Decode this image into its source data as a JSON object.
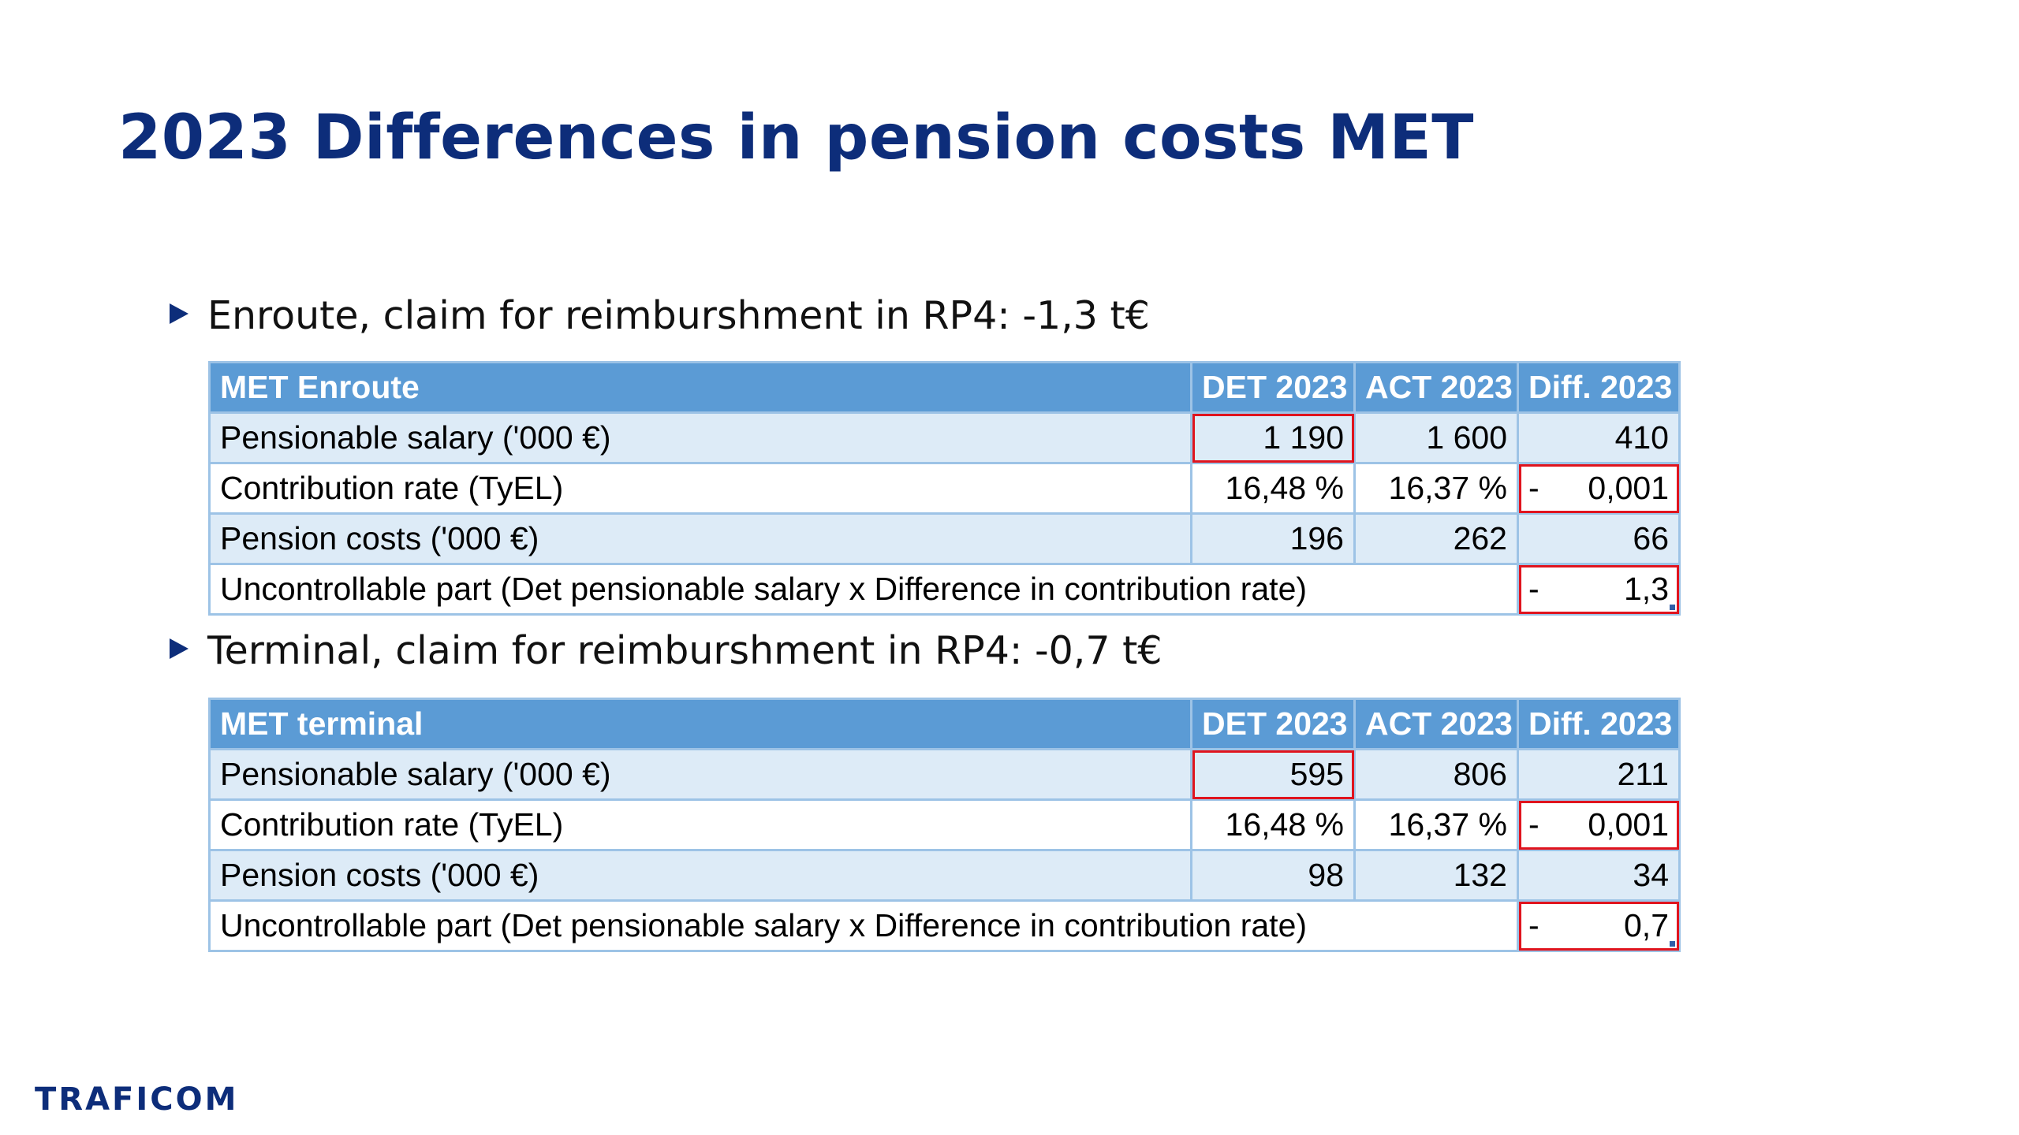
{
  "slide": {
    "title": "2023 Differences in pension costs MET",
    "bullet1": "Enroute, claim for reimburshment in RP4: -1,3 t€",
    "bullet2": "Terminal, claim for reimburshment in RP4: -0,7 t€",
    "logo": "TRAFICOM"
  },
  "colors": {
    "title": "#0d2d7a",
    "header_bg": "#5b9bd5",
    "row_shade": "#ddebf7",
    "highlight": "#e0141e"
  },
  "icons": {
    "bullet": "triangle-right-icon"
  },
  "enroute": {
    "header": [
      "MET Enroute",
      "DET 2023",
      "ACT 2023",
      "Diff. 2023"
    ],
    "salary": {
      "label": "Pensionable salary ('000 €)",
      "det": "1 190",
      "act": "1 600",
      "diff": "410"
    },
    "rate": {
      "label": "Contribution rate (TyEL)",
      "det": "16,48 %",
      "act": "16,37 %",
      "sign": "-",
      "diff": "0,001"
    },
    "costs": {
      "label": "Pension costs ('000 €)",
      "det": "196",
      "act": "262",
      "diff": "66"
    },
    "uncontrollable": {
      "label": "Uncontrollable part (Det pensionable salary x Difference in contribution rate)",
      "sign": "-",
      "diff": "1,3"
    }
  },
  "terminal": {
    "header": [
      "MET terminal",
      "DET 2023",
      "ACT 2023",
      "Diff. 2023"
    ],
    "salary": {
      "label": "Pensionable salary ('000 €)",
      "det": "595",
      "act": "806",
      "diff": "211"
    },
    "rate": {
      "label": "Contribution rate (TyEL)",
      "det": "16,48 %",
      "act": "16,37 %",
      "sign": "-",
      "diff": "0,001"
    },
    "costs": {
      "label": "Pension costs ('000 €)",
      "det": "98",
      "act": "132",
      "diff": "34"
    },
    "uncontrollable": {
      "label": "Uncontrollable part (Det pensionable salary x Difference in contribution rate)",
      "sign": "-",
      "diff": "0,7"
    }
  }
}
